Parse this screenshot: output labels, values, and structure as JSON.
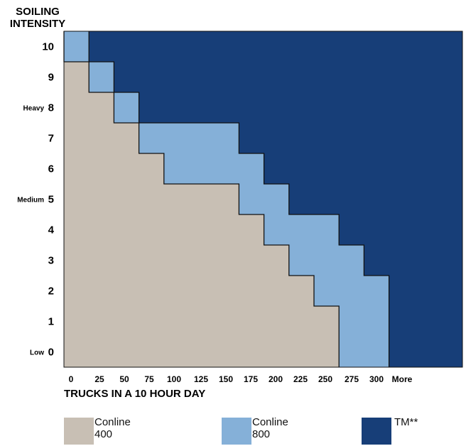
{
  "chart_data": {
    "type": "heatmap",
    "ytitle_lines": [
      "SOILING",
      "INTENSITY"
    ],
    "xlabel": "TRUCKS IN A 10 HOUR DAY",
    "x_ticks": [
      "0",
      "25",
      "50",
      "75",
      "100",
      "125",
      "150",
      "175",
      "200",
      "225",
      "250",
      "275",
      "300",
      "More"
    ],
    "y_ticks": [
      "0",
      "1",
      "2",
      "3",
      "4",
      "5",
      "6",
      "7",
      "8",
      "9",
      "10"
    ],
    "y_side_labels": [
      {
        "at": "8",
        "text": "Heavy"
      },
      {
        "at": "5",
        "text": "Medium"
      },
      {
        "at": "0",
        "text": "Low"
      }
    ],
    "colors": {
      "Conline 400": "#c8bfb4",
      "Conline 800": "#85b0d8",
      "TM**": "#173e78",
      "border": "#111111"
    },
    "regions": [
      {
        "name": "Conline 400",
        "intensity": [
          10,
          9,
          8,
          7,
          6,
          5,
          4,
          3,
          2,
          1,
          0
        ],
        "up_to_trucks": [
          0,
          25,
          50,
          75,
          100,
          175,
          200,
          225,
          250,
          275,
          275
        ]
      },
      {
        "name": "Conline 800",
        "intensity": [
          10,
          9,
          8,
          7,
          6,
          5,
          4,
          3,
          2,
          1,
          0
        ],
        "up_to_trucks": [
          25,
          50,
          75,
          175,
          200,
          225,
          275,
          300,
          325,
          325,
          325
        ]
      },
      {
        "name": "TM**",
        "intensity": [
          10,
          9,
          8,
          7,
          6,
          5,
          4,
          3,
          2,
          1,
          0
        ],
        "up_to_trucks": [
          "More",
          "More",
          "More",
          "More",
          "More",
          "More",
          "More",
          "More",
          "More",
          "More",
          "More"
        ]
      }
    ]
  },
  "legend": [
    {
      "text": "Conline\n400",
      "color": "#c8bfb4"
    },
    {
      "text": "Conline\n800",
      "color": "#85b0d8"
    },
    {
      "text": "TM**",
      "color": "#173e78"
    }
  ]
}
